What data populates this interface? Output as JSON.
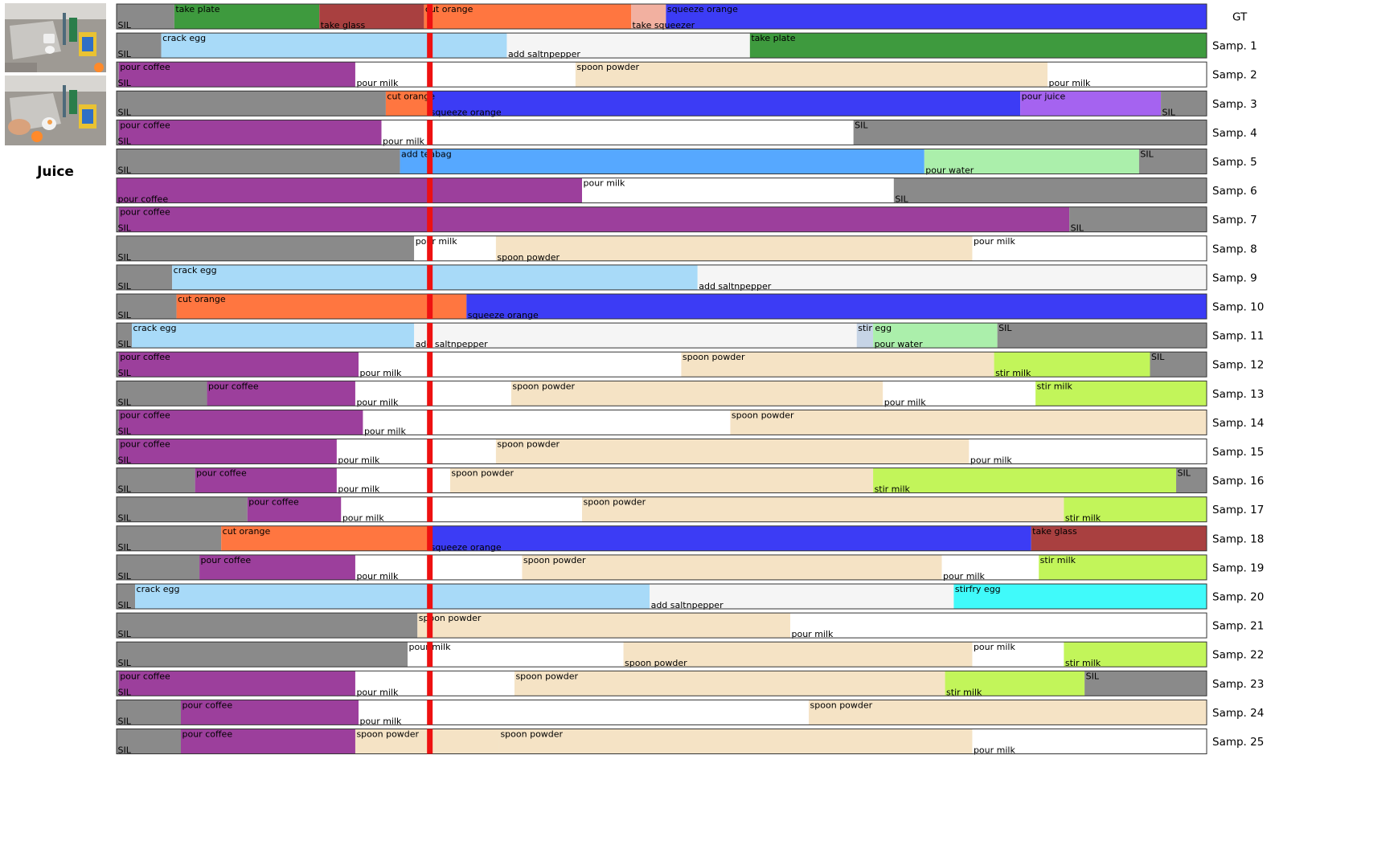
{
  "video": {
    "title": "Juice",
    "frames": [
      "kitchen-frame",
      "kitchen-frame"
    ]
  },
  "chart_data": {
    "type": "segmentation-timeline",
    "title": "",
    "x_range": [
      0,
      100
    ],
    "observed_until": 28.7,
    "rows": [
      {
        "label": "GT",
        "segments": [
          {
            "s": 0,
            "e": 5.3,
            "a": "SIL",
            "pos": "b"
          },
          {
            "s": 5.3,
            "e": 18.6,
            "a": "take plate",
            "pos": "t"
          },
          {
            "s": 18.6,
            "e": 28.2,
            "a": "take glass",
            "pos": "b"
          },
          {
            "s": 28.2,
            "e": 47.2,
            "a": "cut orange",
            "pos": "t"
          },
          {
            "s": 47.2,
            "e": 50.4,
            "a": "take squeezer",
            "pos": "b"
          },
          {
            "s": 50.4,
            "e": 100,
            "a": "squeeze orange",
            "pos": "t"
          }
        ]
      },
      {
        "label": "Samp. 1",
        "segments": [
          {
            "s": 0,
            "e": 4.1,
            "a": "SIL",
            "pos": "b"
          },
          {
            "s": 4.1,
            "e": 35.8,
            "a": "crack egg",
            "pos": "t"
          },
          {
            "s": 35.8,
            "e": 58.1,
            "a": "add saltnpepper",
            "pos": "b"
          },
          {
            "s": 58.1,
            "e": 100,
            "a": "take plate",
            "pos": "t"
          }
        ]
      },
      {
        "label": "Samp. 2",
        "segments": [
          {
            "s": 0,
            "e": 0.2,
            "a": "SIL",
            "pos": "b"
          },
          {
            "s": 0.2,
            "e": 21.9,
            "a": "pour coffee",
            "pos": "t"
          },
          {
            "s": 21.9,
            "e": 42.1,
            "a": "pour milk",
            "pos": "b"
          },
          {
            "s": 42.1,
            "e": 85.4,
            "a": "spoon powder",
            "pos": "t"
          },
          {
            "s": 85.4,
            "e": 100,
            "a": "pour milk",
            "pos": "b"
          }
        ]
      },
      {
        "label": "Samp. 3",
        "segments": [
          {
            "s": 0,
            "e": 24.7,
            "a": "SIL",
            "pos": "b"
          },
          {
            "s": 24.7,
            "e": 28.7,
            "a": "cut orange",
            "pos": "t"
          },
          {
            "s": 28.7,
            "e": 82.9,
            "a": "squeeze orange",
            "pos": "b"
          },
          {
            "s": 82.9,
            "e": 95.8,
            "a": "pour juice",
            "pos": "t"
          },
          {
            "s": 95.8,
            "e": 100,
            "a": "SIL",
            "pos": "b"
          }
        ]
      },
      {
        "label": "Samp. 4",
        "segments": [
          {
            "s": 0,
            "e": 0.2,
            "a": "SIL",
            "pos": "b"
          },
          {
            "s": 0.2,
            "e": 24.3,
            "a": "pour coffee",
            "pos": "t"
          },
          {
            "s": 24.3,
            "e": 67.6,
            "a": "pour milk",
            "pos": "b"
          },
          {
            "s": 67.6,
            "e": 100,
            "a": "SIL",
            "pos": "t"
          }
        ]
      },
      {
        "label": "Samp. 5",
        "segments": [
          {
            "s": 0,
            "e": 26,
            "a": "SIL",
            "pos": "b"
          },
          {
            "s": 26,
            "e": 74.1,
            "a": "add teabag",
            "pos": "t"
          },
          {
            "s": 74.1,
            "e": 93.8,
            "a": "pour water",
            "pos": "b"
          },
          {
            "s": 93.8,
            "e": 100,
            "a": "SIL",
            "pos": "t"
          }
        ]
      },
      {
        "label": "Samp. 6",
        "segments": [
          {
            "s": 0,
            "e": 42.7,
            "a": "pour coffee",
            "pos": "b"
          },
          {
            "s": 42.7,
            "e": 71.3,
            "a": "pour milk",
            "pos": "t"
          },
          {
            "s": 71.3,
            "e": 100,
            "a": "SIL",
            "pos": "b"
          }
        ]
      },
      {
        "label": "Samp. 7",
        "segments": [
          {
            "s": 0,
            "e": 0.2,
            "a": "SIL",
            "pos": "b"
          },
          {
            "s": 0.2,
            "e": 87.4,
            "a": "pour coffee",
            "pos": "t"
          },
          {
            "s": 87.4,
            "e": 100,
            "a": "SIL",
            "pos": "b"
          }
        ]
      },
      {
        "label": "Samp. 8",
        "segments": [
          {
            "s": 0,
            "e": 27.3,
            "a": "SIL",
            "pos": "b"
          },
          {
            "s": 27.3,
            "e": 34.8,
            "a": "pour milk",
            "pos": "t"
          },
          {
            "s": 34.8,
            "e": 78.5,
            "a": "spoon powder",
            "pos": "b"
          },
          {
            "s": 78.5,
            "e": 100,
            "a": "pour milk",
            "pos": "t"
          }
        ]
      },
      {
        "label": "Samp. 9",
        "segments": [
          {
            "s": 0,
            "e": 5.1,
            "a": "SIL",
            "pos": "b"
          },
          {
            "s": 5.1,
            "e": 53.3,
            "a": "crack egg",
            "pos": "t"
          },
          {
            "s": 53.3,
            "e": 100,
            "a": "add saltnpepper",
            "pos": "b"
          }
        ]
      },
      {
        "label": "Samp. 10",
        "segments": [
          {
            "s": 0,
            "e": 5.5,
            "a": "SIL",
            "pos": "b"
          },
          {
            "s": 5.5,
            "e": 32.1,
            "a": "cut orange",
            "pos": "t"
          },
          {
            "s": 32.1,
            "e": 100,
            "a": "squeeze orange",
            "pos": "b"
          }
        ]
      },
      {
        "label": "Samp. 11",
        "segments": [
          {
            "s": 0,
            "e": 1.4,
            "a": "SIL",
            "pos": "b"
          },
          {
            "s": 1.4,
            "e": 27.3,
            "a": "crack egg",
            "pos": "t"
          },
          {
            "s": 27.3,
            "e": 67.9,
            "a": "add saltnpepper",
            "pos": "b"
          },
          {
            "s": 67.9,
            "e": 69.4,
            "a": "stir egg",
            "pos": "t"
          },
          {
            "s": 69.4,
            "e": 80.8,
            "a": "pour water",
            "pos": "b"
          },
          {
            "s": 80.8,
            "e": 100,
            "a": "SIL",
            "pos": "t"
          }
        ]
      },
      {
        "label": "Samp. 12",
        "segments": [
          {
            "s": 0,
            "e": 0.2,
            "a": "SIL",
            "pos": "b"
          },
          {
            "s": 0.2,
            "e": 22.2,
            "a": "pour coffee",
            "pos": "t"
          },
          {
            "s": 22.2,
            "e": 51.8,
            "a": "pour milk",
            "pos": "b"
          },
          {
            "s": 51.8,
            "e": 80.5,
            "a": "spoon powder",
            "pos": "t"
          },
          {
            "s": 80.5,
            "e": 94.8,
            "a": "stir milk",
            "pos": "b"
          },
          {
            "s": 94.8,
            "e": 100,
            "a": "SIL",
            "pos": "t"
          }
        ]
      },
      {
        "label": "Samp. 13",
        "segments": [
          {
            "s": 0,
            "e": 8.3,
            "a": "SIL",
            "pos": "b"
          },
          {
            "s": 8.3,
            "e": 21.9,
            "a": "pour coffee",
            "pos": "t"
          },
          {
            "s": 21.9,
            "e": 36.2,
            "a": "pour milk",
            "pos": "b"
          },
          {
            "s": 36.2,
            "e": 70.3,
            "a": "spoon powder",
            "pos": "t"
          },
          {
            "s": 70.3,
            "e": 84.3,
            "a": "pour milk",
            "pos": "b"
          },
          {
            "s": 84.3,
            "e": 100,
            "a": "stir milk",
            "pos": "t"
          }
        ]
      },
      {
        "label": "Samp. 14",
        "segments": [
          {
            "s": 0,
            "e": 0.2,
            "a": "SIL",
            "pos": "b"
          },
          {
            "s": 0.2,
            "e": 22.6,
            "a": "pour coffee",
            "pos": "t"
          },
          {
            "s": 22.6,
            "e": 56.3,
            "a": "pour milk",
            "pos": "b"
          },
          {
            "s": 56.3,
            "e": 100,
            "a": "spoon powder",
            "pos": "t"
          }
        ]
      },
      {
        "label": "Samp. 15",
        "segments": [
          {
            "s": 0,
            "e": 0.2,
            "a": "SIL",
            "pos": "b"
          },
          {
            "s": 0.2,
            "e": 20.2,
            "a": "pour coffee",
            "pos": "t"
          },
          {
            "s": 20.2,
            "e": 34.8,
            "a": "pour milk",
            "pos": "b"
          },
          {
            "s": 34.8,
            "e": 78.2,
            "a": "spoon powder",
            "pos": "t"
          },
          {
            "s": 78.2,
            "e": 100,
            "a": "pour milk",
            "pos": "b"
          }
        ]
      },
      {
        "label": "Samp. 16",
        "segments": [
          {
            "s": 0,
            "e": 7.2,
            "a": "SIL",
            "pos": "b"
          },
          {
            "s": 7.2,
            "e": 20.2,
            "a": "pour coffee",
            "pos": "t"
          },
          {
            "s": 20.2,
            "e": 30.6,
            "a": "pour milk",
            "pos": "b"
          },
          {
            "s": 30.6,
            "e": 69.4,
            "a": "spoon powder",
            "pos": "t"
          },
          {
            "s": 69.4,
            "e": 97.2,
            "a": "stir milk",
            "pos": "b"
          },
          {
            "s": 97.2,
            "e": 100,
            "a": "SIL",
            "pos": "t"
          }
        ]
      },
      {
        "label": "Samp. 17",
        "segments": [
          {
            "s": 0,
            "e": 12,
            "a": "SIL",
            "pos": "b"
          },
          {
            "s": 12,
            "e": 20.6,
            "a": "pour coffee",
            "pos": "t"
          },
          {
            "s": 20.6,
            "e": 42.7,
            "a": "pour milk",
            "pos": "b"
          },
          {
            "s": 42.7,
            "e": 86.9,
            "a": "spoon powder",
            "pos": "t"
          },
          {
            "s": 86.9,
            "e": 100,
            "a": "stir milk",
            "pos": "b"
          }
        ]
      },
      {
        "label": "Samp. 18",
        "segments": [
          {
            "s": 0,
            "e": 9.6,
            "a": "SIL",
            "pos": "b"
          },
          {
            "s": 9.6,
            "e": 28.7,
            "a": "cut orange",
            "pos": "t"
          },
          {
            "s": 28.7,
            "e": 83.9,
            "a": "squeeze orange",
            "pos": "b"
          },
          {
            "s": 83.9,
            "e": 100,
            "a": "take glass",
            "pos": "t"
          }
        ]
      },
      {
        "label": "Samp. 19",
        "segments": [
          {
            "s": 0,
            "e": 7.6,
            "a": "SIL",
            "pos": "b"
          },
          {
            "s": 7.6,
            "e": 21.9,
            "a": "pour coffee",
            "pos": "t"
          },
          {
            "s": 21.9,
            "e": 37.2,
            "a": "pour milk",
            "pos": "b"
          },
          {
            "s": 37.2,
            "e": 75.7,
            "a": "spoon powder",
            "pos": "t"
          },
          {
            "s": 75.7,
            "e": 84.6,
            "a": "pour milk",
            "pos": "b"
          },
          {
            "s": 84.6,
            "e": 100,
            "a": "stir milk",
            "pos": "t"
          }
        ]
      },
      {
        "label": "Samp. 20",
        "segments": [
          {
            "s": 0,
            "e": 1.7,
            "a": "SIL",
            "pos": "b"
          },
          {
            "s": 1.7,
            "e": 48.9,
            "a": "crack egg",
            "pos": "t"
          },
          {
            "s": 48.9,
            "e": 76.8,
            "a": "add saltnpepper",
            "pos": "b"
          },
          {
            "s": 76.8,
            "e": 100,
            "a": "stirfry egg",
            "pos": "t"
          }
        ]
      },
      {
        "label": "Samp. 21",
        "segments": [
          {
            "s": 0,
            "e": 27.6,
            "a": "SIL",
            "pos": "b"
          },
          {
            "s": 27.6,
            "e": 61.8,
            "a": "spoon powder",
            "pos": "t"
          },
          {
            "s": 61.8,
            "e": 100,
            "a": "pour milk",
            "pos": "b"
          }
        ]
      },
      {
        "label": "Samp. 22",
        "segments": [
          {
            "s": 0,
            "e": 26.7,
            "a": "SIL",
            "pos": "b"
          },
          {
            "s": 26.7,
            "e": 46.5,
            "a": "pour milk",
            "pos": "t"
          },
          {
            "s": 46.5,
            "e": 78.5,
            "a": "spoon powder",
            "pos": "b"
          },
          {
            "s": 78.5,
            "e": 86.9,
            "a": "pour milk",
            "pos": "t"
          },
          {
            "s": 86.9,
            "e": 100,
            "a": "stir milk",
            "pos": "b"
          }
        ]
      },
      {
        "label": "Samp. 23",
        "segments": [
          {
            "s": 0,
            "e": 0.2,
            "a": "SIL",
            "pos": "b"
          },
          {
            "s": 0.2,
            "e": 21.9,
            "a": "pour coffee",
            "pos": "t"
          },
          {
            "s": 21.9,
            "e": 36.5,
            "a": "pour milk",
            "pos": "b"
          },
          {
            "s": 36.5,
            "e": 76,
            "a": "spoon powder",
            "pos": "t"
          },
          {
            "s": 76,
            "e": 88.8,
            "a": "stir milk",
            "pos": "b"
          },
          {
            "s": 88.8,
            "e": 100,
            "a": "SIL",
            "pos": "t"
          }
        ]
      },
      {
        "label": "Samp. 24",
        "segments": [
          {
            "s": 0,
            "e": 5.9,
            "a": "SIL",
            "pos": "b"
          },
          {
            "s": 5.9,
            "e": 22.2,
            "a": "pour coffee",
            "pos": "t"
          },
          {
            "s": 22.2,
            "e": 63.5,
            "a": "pour milk",
            "pos": "b"
          },
          {
            "s": 63.5,
            "e": 100,
            "a": "spoon powder",
            "pos": "t"
          }
        ]
      },
      {
        "label": "Samp. 25",
        "segments": [
          {
            "s": 0,
            "e": 5.9,
            "a": "SIL",
            "pos": "b"
          },
          {
            "s": 5.9,
            "e": 21.9,
            "a": "pour coffee",
            "pos": "t"
          },
          {
            "s": 21.9,
            "e": 35.1,
            "a": "spoon powder",
            "pos": "t"
          },
          {
            "s": 35.1,
            "e": 78.5,
            "a": "spoon powder",
            "pos": "t"
          },
          {
            "s": 78.5,
            "e": 100,
            "a": "pour milk",
            "pos": "b"
          }
        ]
      }
    ]
  },
  "colors": {
    "SIL": "#8a8a8a",
    "take plate": "#3e9a3e",
    "take glass": "#a94040",
    "cut orange": "#ff7640",
    "take squeezer": "#f2b0a0",
    "squeeze orange": "#3c3cf5",
    "crack egg": "#a8daf8",
    "add saltnpepper": "#f5f5f5",
    "pour coffee": "#9c3f9c",
    "pour milk": "#ffffff",
    "spoon powder": "#f5e3c5",
    "pour juice": "#a563f0",
    "add teabag": "#56a8ff",
    "pour water": "#abefab",
    "stir egg": "#c6d4e6",
    "stir milk": "#c2f55a",
    "stirfry egg": "#40fafa",
    "observed_marker": "#ee1111"
  }
}
